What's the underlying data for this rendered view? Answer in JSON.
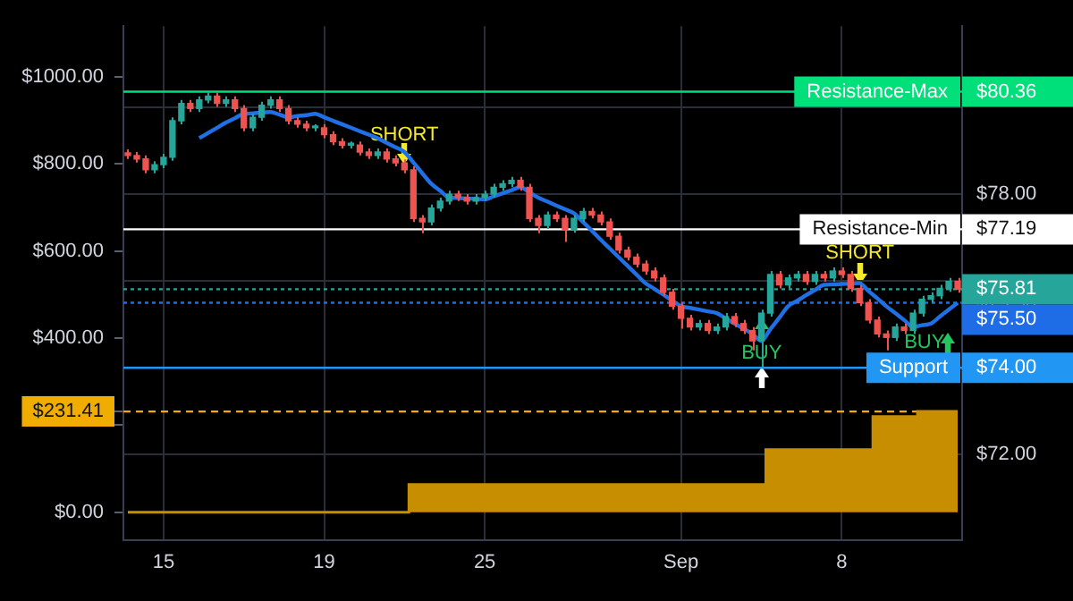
{
  "chart_data": {
    "type": "candlestick",
    "categories": [
      null,
      null,
      null,
      null,
      "15",
      null,
      null,
      null,
      null,
      null,
      null,
      null,
      null,
      null,
      null,
      null,
      null,
      null,
      null,
      null,
      null,
      null,
      "19",
      null,
      null,
      null,
      null,
      null,
      null,
      null,
      null,
      null,
      null,
      null,
      null,
      null,
      null,
      null,
      null,
      null,
      "25",
      null,
      null,
      null,
      null,
      null,
      null,
      null,
      null,
      null,
      null,
      null,
      null,
      null,
      null,
      null,
      null,
      null,
      null,
      null,
      null,
      null,
      "Sep",
      null,
      null,
      null,
      null,
      null,
      null,
      null,
      null,
      null,
      null,
      null,
      null,
      null,
      null,
      null,
      null,
      null,
      "8",
      null,
      null,
      null,
      null,
      null,
      null,
      null,
      null,
      null,
      null,
      null,
      null,
      null
    ],
    "ylim": [
      -64,
      1116
    ],
    "yticks": [
      {
        "value": 0,
        "label": "$0.00"
      },
      {
        "value": 200,
        "label": null
      },
      {
        "value": 231.41,
        "label": "$231.41"
      },
      {
        "value": 400,
        "label": "$400.00"
      },
      {
        "value": 600,
        "label": "$600.00"
      },
      {
        "value": 800,
        "label": "$800.00"
      },
      {
        "value": 1000,
        "label": "$1000.00"
      }
    ],
    "y2lim": [
      70.03,
      81.87
    ],
    "y2ticks": [
      {
        "value": 72,
        "label": "$72.00"
      },
      {
        "value": 74,
        "label": "$74.00"
      },
      {
        "value": 75.5,
        "label": "$75.50"
      },
      {
        "value": 75.81,
        "label": "$75.81"
      },
      {
        "value": 76,
        "label": null
      },
      {
        "value": 77.19,
        "label": "$77.19"
      },
      {
        "value": 78,
        "label": "$78.00"
      },
      {
        "value": 80,
        "label": null
      },
      {
        "value": 80.36,
        "label": "$80.36"
      }
    ],
    "grid": true,
    "series": [
      {
        "type": "area",
        "color": "#c68e00",
        "values": [
          0,
          0,
          0,
          0,
          0,
          0,
          0,
          0,
          0,
          0,
          0,
          0,
          0,
          0,
          0,
          0,
          0,
          0,
          0,
          0,
          0,
          0,
          0,
          0,
          0,
          0,
          0,
          0,
          0,
          0,
          0,
          0,
          64,
          64,
          64,
          64,
          64,
          64,
          64,
          64,
          64,
          64,
          64,
          64,
          64,
          64,
          64,
          64,
          64,
          64,
          64,
          64,
          64,
          64,
          64,
          64,
          64,
          64,
          64,
          64,
          64,
          64,
          64,
          64,
          64,
          64,
          64,
          64,
          64,
          64,
          64,
          64,
          144,
          144,
          144,
          144,
          144,
          144,
          144,
          144,
          144,
          144,
          144,
          144,
          220,
          220,
          220,
          220,
          220,
          231.41,
          231.41,
          231.41,
          231.41,
          231.41
        ]
      },
      {
        "type": "candlestick",
        "axis": "y2",
        "ohlc": [
          [
            78.95,
            79.03,
            78.81,
            78.89
          ],
          [
            78.89,
            78.97,
            78.73,
            78.81
          ],
          [
            78.81,
            78.89,
            78.48,
            78.56
          ],
          [
            78.56,
            78.76,
            78.48,
            78.68
          ],
          [
            78.68,
            78.93,
            78.6,
            78.85
          ],
          [
            78.85,
            79.77,
            78.77,
            79.69
          ],
          [
            79.69,
            80.17,
            79.61,
            80.09
          ],
          [
            80.09,
            80.17,
            79.89,
            79.97
          ],
          [
            79.97,
            80.25,
            79.89,
            80.17
          ],
          [
            80.17,
            80.34,
            80.09,
            80.26
          ],
          [
            80.26,
            80.34,
            80.01,
            80.09
          ],
          [
            80.09,
            80.25,
            80.01,
            80.17
          ],
          [
            80.17,
            80.25,
            79.89,
            79.97
          ],
          [
            79.97,
            80.05,
            79.45,
            79.53
          ],
          [
            79.53,
            79.85,
            79.45,
            79.77
          ],
          [
            79.77,
            80.13,
            79.69,
            80.05
          ],
          [
            80.05,
            80.25,
            79.97,
            80.17
          ],
          [
            80.17,
            80.25,
            79.89,
            79.97
          ],
          [
            79.97,
            80.05,
            79.61,
            79.69
          ],
          [
            79.69,
            79.77,
            79.53,
            79.61
          ],
          [
            79.61,
            79.69,
            79.45,
            79.53
          ],
          [
            79.53,
            79.61,
            79.45,
            79.53
          ],
          [
            79.53,
            79.61,
            79.29,
            79.37
          ],
          [
            79.37,
            79.45,
            79.13,
            79.21
          ],
          [
            79.21,
            79.29,
            79.05,
            79.13
          ],
          [
            79.13,
            79.21,
            79.05,
            79.13
          ],
          [
            79.13,
            79.21,
            78.89,
            78.97
          ],
          [
            78.97,
            79.05,
            78.81,
            78.89
          ],
          [
            78.89,
            79.05,
            78.81,
            78.97
          ],
          [
            78.97,
            79.05,
            78.73,
            78.81
          ],
          [
            78.81,
            78.89,
            78.64,
            78.72
          ],
          [
            78.72,
            78.8,
            78.48,
            78.56
          ],
          [
            78.56,
            78.64,
            77.36,
            77.44
          ],
          [
            77.44,
            77.52,
            77.1,
            77.36
          ],
          [
            77.36,
            77.76,
            77.28,
            77.68
          ],
          [
            77.68,
            77.92,
            77.6,
            77.84
          ],
          [
            77.84,
            78.08,
            77.76,
            78.0
          ],
          [
            78.0,
            78.08,
            77.84,
            77.92
          ],
          [
            77.92,
            78.0,
            77.76,
            77.84
          ],
          [
            77.84,
            78.0,
            77.76,
            77.92
          ],
          [
            77.92,
            78.08,
            77.84,
            78.0
          ],
          [
            78.0,
            78.24,
            77.92,
            78.16
          ],
          [
            78.16,
            78.32,
            78.08,
            78.24
          ],
          [
            78.24,
            78.4,
            78.16,
            78.32
          ],
          [
            78.32,
            78.4,
            78.08,
            78.16
          ],
          [
            78.16,
            78.24,
            77.36,
            77.44
          ],
          [
            77.44,
            77.52,
            77.1,
            77.28
          ],
          [
            77.28,
            77.6,
            77.2,
            77.52
          ],
          [
            77.52,
            77.6,
            77.36,
            77.44
          ],
          [
            77.44,
            77.52,
            76.9,
            77.19
          ],
          [
            77.19,
            77.52,
            77.11,
            77.44
          ],
          [
            77.44,
            77.68,
            77.36,
            77.6
          ],
          [
            77.6,
            77.68,
            77.44,
            77.52
          ],
          [
            77.52,
            77.6,
            77.28,
            77.36
          ],
          [
            77.36,
            77.44,
            76.95,
            77.03
          ],
          [
            77.03,
            77.11,
            76.63,
            76.71
          ],
          [
            76.71,
            76.79,
            76.47,
            76.55
          ],
          [
            76.55,
            76.63,
            76.31,
            76.39
          ],
          [
            76.39,
            76.47,
            76.15,
            76.23
          ],
          [
            76.23,
            76.31,
            75.99,
            76.07
          ],
          [
            76.07,
            76.15,
            75.66,
            75.74
          ],
          [
            75.74,
            75.82,
            75.34,
            75.42
          ],
          [
            75.42,
            75.5,
            74.9,
            75.14
          ],
          [
            75.14,
            75.22,
            74.86,
            74.94
          ],
          [
            74.94,
            75.1,
            74.86,
            75.02
          ],
          [
            75.02,
            75.1,
            74.78,
            74.86
          ],
          [
            74.86,
            75.02,
            74.78,
            74.94
          ],
          [
            74.94,
            75.26,
            74.86,
            75.18
          ],
          [
            75.18,
            75.26,
            74.94,
            75.02
          ],
          [
            75.02,
            75.1,
            74.78,
            74.86
          ],
          [
            74.86,
            74.94,
            74.4,
            74.62
          ],
          [
            74.62,
            75.34,
            74.02,
            75.26
          ],
          [
            75.26,
            76.23,
            75.18,
            76.15
          ],
          [
            76.15,
            76.23,
            75.83,
            75.91
          ],
          [
            75.91,
            76.15,
            75.83,
            76.07
          ],
          [
            76.07,
            76.23,
            75.99,
            76.15
          ],
          [
            76.15,
            76.23,
            75.91,
            75.99
          ],
          [
            75.99,
            76.23,
            75.91,
            76.15
          ],
          [
            76.15,
            76.23,
            75.99,
            76.07
          ],
          [
            76.07,
            76.31,
            75.99,
            76.23
          ],
          [
            76.23,
            76.31,
            76.07,
            76.15
          ],
          [
            76.15,
            76.23,
            75.75,
            75.83
          ],
          [
            75.83,
            75.91,
            75.42,
            75.5
          ],
          [
            75.5,
            75.58,
            75.02,
            75.1
          ],
          [
            75.1,
            75.18,
            74.7,
            74.78
          ],
          [
            74.78,
            74.86,
            74.4,
            74.7
          ],
          [
            74.7,
            75.02,
            74.62,
            74.94
          ],
          [
            74.94,
            75.02,
            74.78,
            74.86
          ],
          [
            74.86,
            75.34,
            74.78,
            75.26
          ],
          [
            75.26,
            75.66,
            75.18,
            75.58
          ],
          [
            75.58,
            75.74,
            75.5,
            75.66
          ],
          [
            75.66,
            75.91,
            75.58,
            75.83
          ],
          [
            75.83,
            76.07,
            75.75,
            75.99
          ],
          [
            75.99,
            76.07,
            75.73,
            75.81
          ]
        ]
      },
      {
        "type": "line",
        "axis": "y2",
        "color": "#1f6fe5",
        "values": [
          null,
          null,
          null,
          null,
          null,
          null,
          null,
          null,
          79.29,
          79.41,
          79.53,
          79.65,
          79.75,
          79.85,
          79.86,
          79.88,
          79.89,
          79.83,
          79.77,
          79.8,
          79.82,
          79.85,
          79.77,
          79.69,
          79.61,
          79.53,
          79.45,
          79.37,
          79.29,
          79.18,
          79.08,
          78.97,
          78.73,
          78.48,
          78.24,
          78.08,
          77.92,
          77.91,
          77.9,
          77.89,
          77.88,
          77.95,
          78.02,
          78.09,
          78.16,
          78.04,
          77.92,
          77.83,
          77.74,
          77.65,
          77.56,
          77.36,
          77.16,
          76.95,
          76.75,
          76.55,
          76.35,
          76.15,
          75.95,
          75.82,
          75.69,
          75.55,
          75.42,
          75.38,
          75.34,
          75.3,
          75.26,
          75.14,
          75.02,
          74.9,
          74.78,
          74.62,
          74.89,
          75.15,
          75.42,
          75.54,
          75.67,
          75.79,
          75.91,
          75.92,
          75.93,
          75.94,
          75.95,
          75.77,
          75.6,
          75.42,
          75.26,
          75.1,
          74.94,
          74.98,
          75.02,
          75.18,
          75.34,
          75.5
        ]
      }
    ],
    "ref_lines": [
      {
        "axis": "y2",
        "value": 80.36,
        "label": "Resistance-Max",
        "color": "#00e07a",
        "line_style": "solid"
      },
      {
        "axis": "y2",
        "value": 77.19,
        "label": "Resistance-Min",
        "color": "#ffffff",
        "line_style": "solid"
      },
      {
        "axis": "y2",
        "value": 75.81,
        "label": null,
        "color": "#26a69a",
        "line_style": "dotted"
      },
      {
        "axis": "y2",
        "value": 75.5,
        "label": null,
        "color": "#1e6ce6",
        "line_style": "dotted"
      },
      {
        "axis": "y2",
        "value": 74,
        "label": "Support",
        "color": "#2196f3",
        "line_style": "solid"
      },
      {
        "axis": "y",
        "value": 231.41,
        "label": null,
        "color": "#f0ad00",
        "line_style": "dashed"
      }
    ],
    "annotations": [
      "SHORT",
      "SHORT",
      "BUY",
      "BUY"
    ]
  }
}
